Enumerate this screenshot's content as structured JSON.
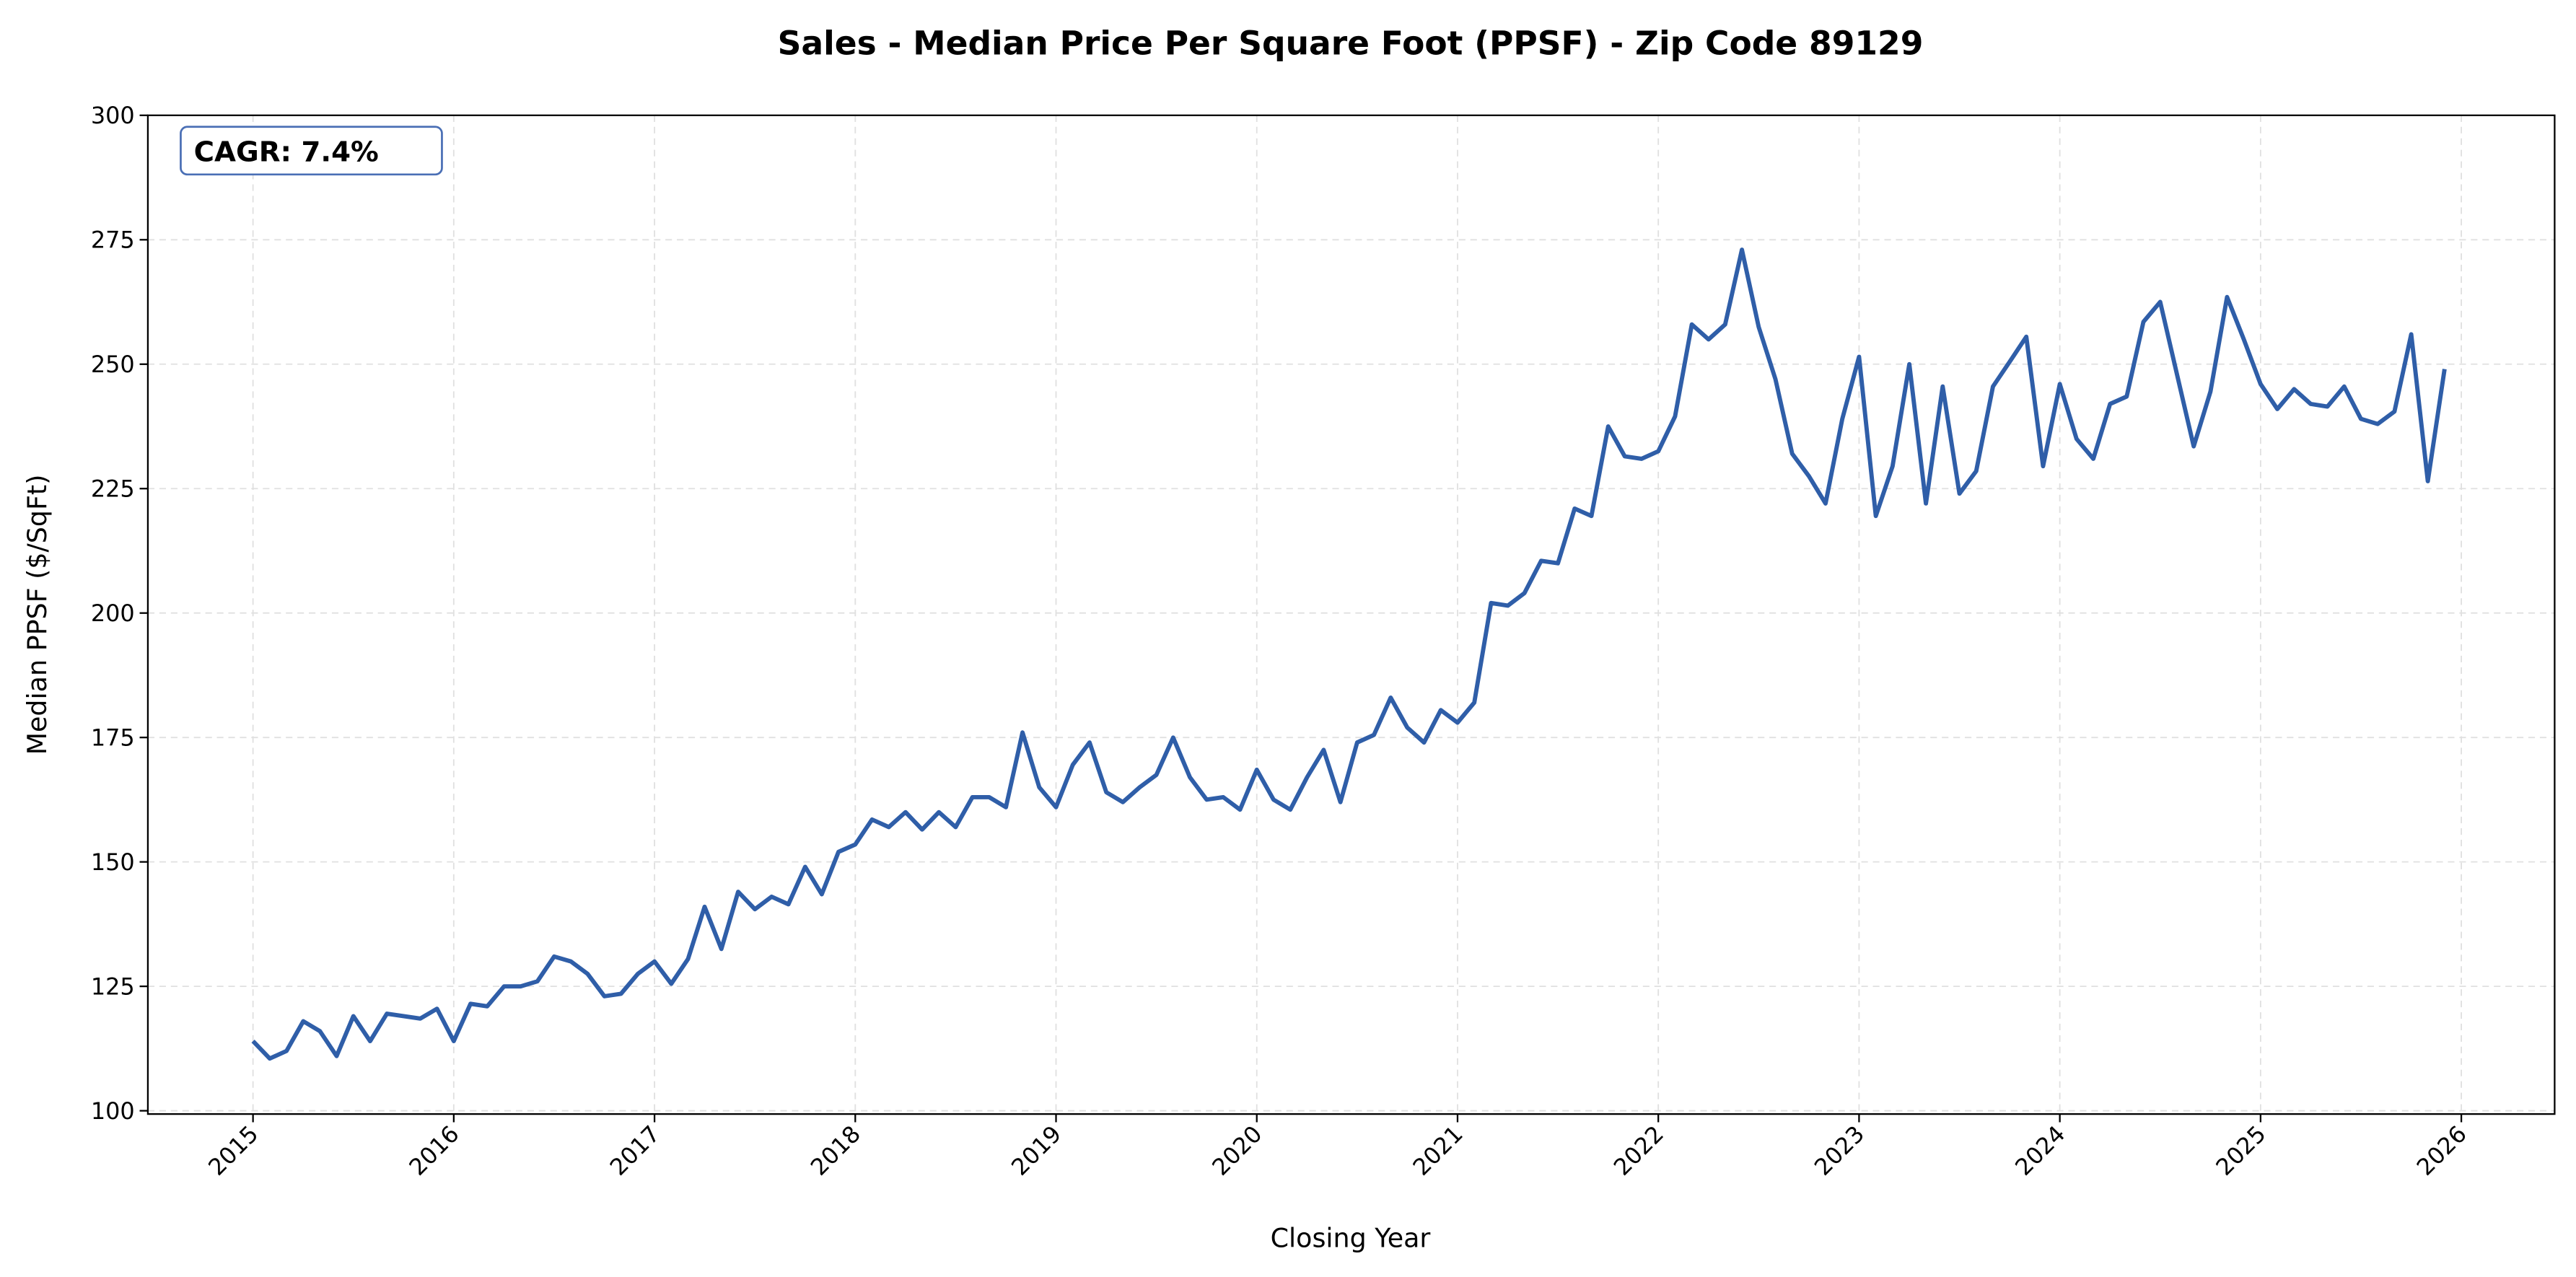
{
  "chart_data": {
    "type": "line",
    "title": "Sales - Median Price Per Square Foot (PPSF) - Zip Code 89129",
    "xlabel": "Closing Year",
    "ylabel": "Median PPSF ($/SqFt)",
    "annotation": "CAGR: 7.4%",
    "ylim": [
      100,
      300
    ],
    "xlim": [
      "2014-06",
      "2026-03"
    ],
    "yticks": [
      "100",
      "125",
      "150",
      "175",
      "200",
      "225",
      "250",
      "275",
      "300"
    ],
    "xticks": [
      "2015",
      "2016",
      "2017",
      "2018",
      "2019",
      "2020",
      "2021",
      "2022",
      "2023",
      "2024",
      "2025",
      "2026"
    ],
    "grid": true,
    "line_color": "#2f5ea8",
    "frequency": "monthly",
    "start": "2015-01",
    "values": [
      114,
      110.5,
      112,
      118,
      116,
      111,
      119,
      114,
      119.5,
      119,
      118.5,
      120.5,
      114,
      121.5,
      121,
      125,
      125,
      126,
      131,
      130,
      127.5,
      123,
      123.5,
      127.5,
      130,
      125.5,
      130.5,
      141,
      132.5,
      144,
      140.5,
      143,
      141.5,
      149,
      143.5,
      152,
      153.5,
      158.5,
      157,
      160,
      156.5,
      160,
      157,
      163,
      163,
      161,
      176,
      165,
      161,
      169.5,
      174,
      164,
      162,
      165,
      167.5,
      175,
      167,
      162.5,
      163,
      160.5,
      168.5,
      162.5,
      160.5,
      167,
      172.5,
      162,
      174,
      175.5,
      183,
      177,
      174,
      180.5,
      178,
      182,
      202,
      201.5,
      204,
      210.5,
      210,
      221,
      219.5,
      237.5,
      231.5,
      231,
      232.5,
      239.5,
      258,
      255,
      258,
      273,
      257.5,
      247,
      232,
      227.5,
      222,
      239,
      251.5,
      219.5,
      229.5,
      250,
      222,
      245.5,
      224,
      228.5,
      245.5,
      250.5,
      255.5,
      229.5,
      246,
      235,
      231,
      242,
      243.5,
      258.5,
      262.5,
      248,
      233.5,
      244.5,
      263.5,
      255,
      246,
      241,
      245,
      242,
      241.5,
      245.5,
      239,
      238,
      240.5,
      256,
      226.5,
      249
    ]
  }
}
